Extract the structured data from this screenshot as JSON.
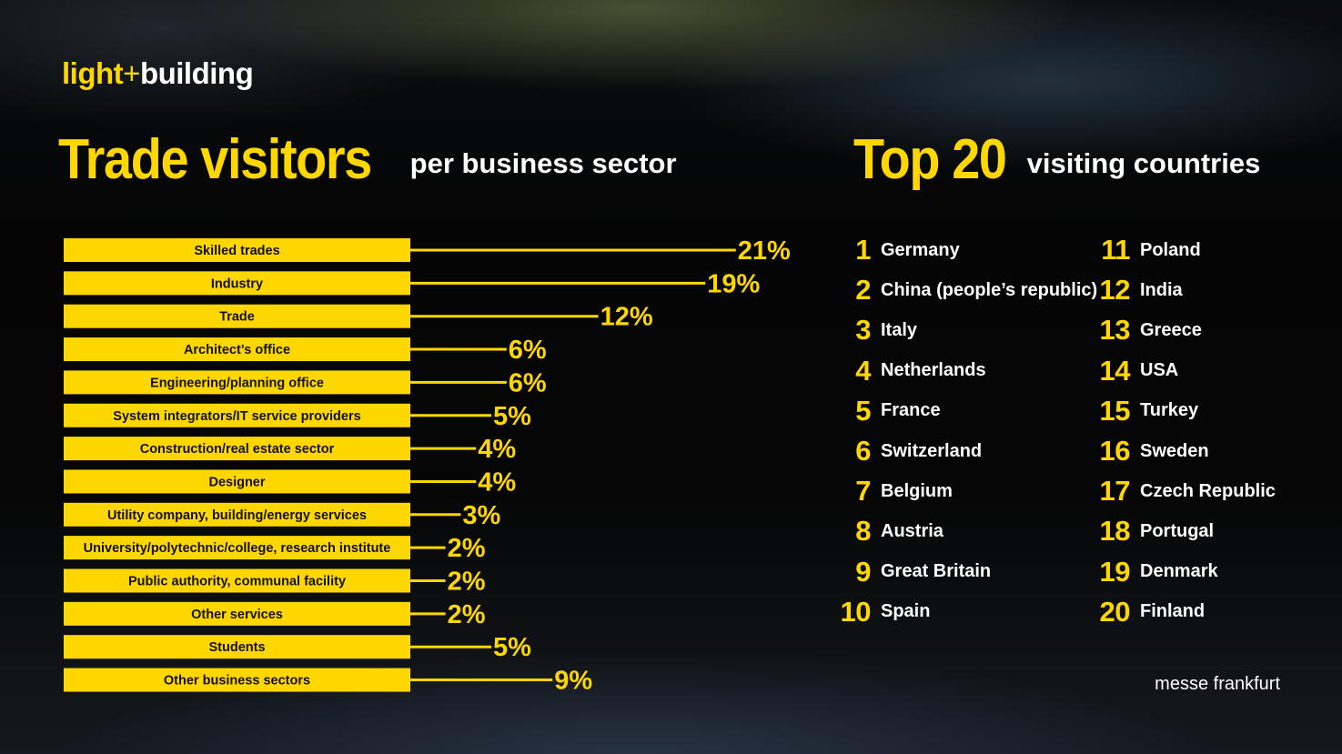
{
  "logo": {
    "light": "light",
    "plus": "+",
    "building": "building"
  },
  "left_title": {
    "main": "Trade visitors",
    "sub": "per business sector"
  },
  "right_title": {
    "main": "Top 20",
    "sub": "visiting countries"
  },
  "chart_data": {
    "type": "bar",
    "orientation": "horizontal",
    "title": "Trade visitors per business sector",
    "unit": "%",
    "categories": [
      "Skilled trades",
      "Industry",
      "Trade",
      "Architect’s office",
      "Engineering/planning office",
      "System integrators/IT service providers",
      "Construction/real estate sector",
      "Designer",
      "Utility company, building/energy services",
      "University/polytechnic/college, research institute",
      "Public authority, communal facility",
      "Other services",
      "Students",
      "Other business sectors"
    ],
    "values": [
      21,
      19,
      12,
      6,
      6,
      5,
      4,
      4,
      3,
      2,
      2,
      2,
      5,
      9
    ],
    "labels": [
      "21%",
      "19%",
      "12%",
      "6%",
      "6%",
      "5%",
      "4%",
      "4%",
      "3%",
      "2%",
      "2%",
      "2%",
      "5%",
      "9%"
    ],
    "colors": {
      "bar": "#ffd700",
      "label": "#ffd700",
      "text": "#111111"
    }
  },
  "countries": [
    {
      "rank": "1",
      "name": "Germany"
    },
    {
      "rank": "2",
      "name": "China (people’s republic)"
    },
    {
      "rank": "3",
      "name": "Italy"
    },
    {
      "rank": "4",
      "name": "Netherlands"
    },
    {
      "rank": "5",
      "name": "France"
    },
    {
      "rank": "6",
      "name": "Switzerland"
    },
    {
      "rank": "7",
      "name": "Belgium"
    },
    {
      "rank": "8",
      "name": "Austria"
    },
    {
      "rank": "9",
      "name": "Great Britain"
    },
    {
      "rank": "10",
      "name": "Spain"
    },
    {
      "rank": "11",
      "name": "Poland"
    },
    {
      "rank": "12",
      "name": "India"
    },
    {
      "rank": "13",
      "name": "Greece"
    },
    {
      "rank": "14",
      "name": "USA"
    },
    {
      "rank": "15",
      "name": "Turkey"
    },
    {
      "rank": "16",
      "name": "Sweden"
    },
    {
      "rank": "17",
      "name": "Czech Republic"
    },
    {
      "rank": "18",
      "name": "Portugal"
    },
    {
      "rank": "19",
      "name": "Denmark"
    },
    {
      "rank": "20",
      "name": "Finland"
    }
  ],
  "footer": "messe frankfurt"
}
